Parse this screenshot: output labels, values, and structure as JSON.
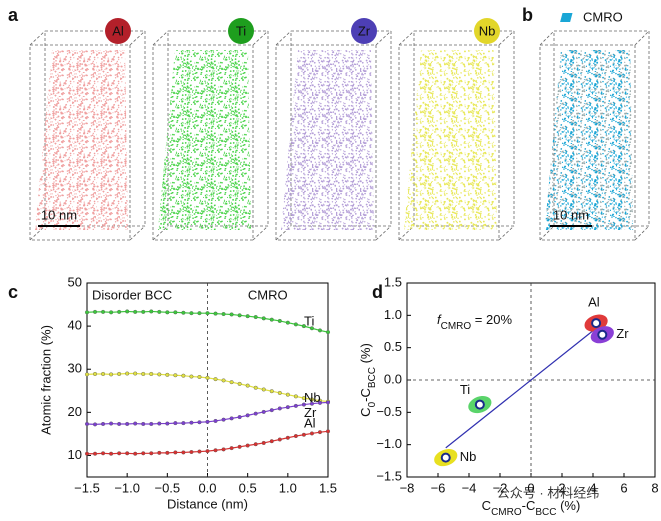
{
  "figure": {
    "panel_labels": [
      "a",
      "b",
      "c",
      "d"
    ],
    "maps": [
      {
        "element": "Al",
        "cloud": "#f0a0a0",
        "badge": "#b3202a",
        "text": "#ffffff"
      },
      {
        "element": "Ti",
        "cloud": "#4cd44c",
        "badge": "#1e9e1e",
        "text": "#ffffff"
      },
      {
        "element": "Zr",
        "cloud": "#b5a0d8",
        "badge": "#4d3fb5",
        "text": "#ffffff"
      },
      {
        "element": "Nb",
        "cloud": "#e8e85a",
        "badge": "#e2d62a",
        "text": "#000000"
      }
    ],
    "cro_cloud": "#1aa6d6",
    "cro_legend": "CMRO",
    "scale_bar": "10 nm",
    "watermark": "公众号 · 材料经纬"
  },
  "chart_data": [
    {
      "type": "line",
      "xlabel": "Distance (nm)",
      "ylabel": "Atomic fraction (%)",
      "annotations": [
        "Disorder BCC",
        "CMRO"
      ],
      "x": [
        -1.5,
        -1.4,
        -1.3,
        -1.2,
        -1.1,
        -1.0,
        -0.9,
        -0.8,
        -0.7,
        -0.6,
        -0.5,
        -0.4,
        -0.3,
        -0.2,
        -0.1,
        0,
        0.1,
        0.2,
        0.3,
        0.4,
        0.5,
        0.6,
        0.7,
        0.8,
        0.9,
        1.0,
        1.1,
        1.2,
        1.3,
        1.4,
        1.5
      ],
      "series": [
        {
          "name": "Ti",
          "color": "#3cc83c",
          "values": [
            43.2,
            43.3,
            43.3,
            43.2,
            43.3,
            43.4,
            43.3,
            43.3,
            43.4,
            43.3,
            43.2,
            43.2,
            43.1,
            43.0,
            43.0,
            43.0,
            42.9,
            42.8,
            42.7,
            42.5,
            42.3,
            42.1,
            41.8,
            41.5,
            41.2,
            40.8,
            40.4,
            40.0,
            39.5,
            39.0,
            38.6
          ]
        },
        {
          "name": "Nb",
          "color": "#e0e040",
          "values": [
            28.8,
            28.9,
            28.9,
            28.8,
            28.9,
            29.0,
            29.0,
            28.9,
            28.9,
            28.8,
            28.7,
            28.6,
            28.5,
            28.3,
            28.2,
            28.0,
            27.7,
            27.4,
            27.0,
            26.6,
            26.2,
            25.7,
            25.3,
            24.9,
            24.5,
            24.1,
            23.7,
            23.3,
            23.0,
            22.7,
            22.5
          ]
        },
        {
          "name": "Zr",
          "color": "#7b3fd0",
          "values": [
            17.3,
            17.2,
            17.3,
            17.4,
            17.3,
            17.3,
            17.4,
            17.3,
            17.3,
            17.4,
            17.4,
            17.5,
            17.5,
            17.6,
            17.7,
            17.8,
            18.0,
            18.3,
            18.6,
            18.9,
            19.3,
            19.7,
            20.1,
            20.5,
            20.9,
            21.2,
            21.5,
            21.8,
            22.0,
            22.2,
            22.3
          ]
        },
        {
          "name": "Al",
          "color": "#d93030",
          "values": [
            10.4,
            10.4,
            10.5,
            10.4,
            10.5,
            10.5,
            10.4,
            10.5,
            10.5,
            10.6,
            10.6,
            10.7,
            10.7,
            10.8,
            10.9,
            11.0,
            11.2,
            11.4,
            11.7,
            12.0,
            12.3,
            12.6,
            12.9,
            13.3,
            13.7,
            14.1,
            14.5,
            14.8,
            15.1,
            15.4,
            15.6
          ]
        }
      ],
      "xlim": [
        -1.5,
        1.5
      ],
      "xticks": [
        {
          "value": -1.5,
          "label": "−1.5"
        },
        {
          "value": -1.0,
          "label": "−1.0"
        },
        {
          "value": -0.5,
          "label": "−0.5"
        },
        {
          "value": 0,
          "label": "0.0"
        },
        0.5,
        {
          "value": 1.0,
          "label": "1.0"
        },
        1.5
      ],
      "ylim": [
        5,
        50
      ],
      "yticks": [
        10,
        20,
        30,
        40,
        50
      ]
    },
    {
      "type": "scatter",
      "xlabel": [
        "C",
        "CMRO",
        "-C",
        "BCC",
        " (%)"
      ],
      "ylabel": [
        "C",
        "0",
        "-C",
        "BCC",
        " (%)"
      ],
      "annotation": [
        "f",
        "CMRO",
        " = 20%"
      ],
      "series": [
        {
          "name": "Al",
          "color": "#e03a3a",
          "x": [
            4.2
          ],
          "values": [
            0.88
          ]
        },
        {
          "name": "Zr",
          "color": "#8a3fd6",
          "x": [
            4.6
          ],
          "values": [
            0.7
          ]
        },
        {
          "name": "Ti",
          "color": "#5ad46a",
          "x": [
            -3.3
          ],
          "values": [
            -0.38
          ]
        },
        {
          "name": "Nb",
          "color": "#e8e020",
          "x": [
            -5.5
          ],
          "values": [
            -1.2
          ]
        }
      ],
      "fit": {
        "color": "#3030b0",
        "x": [
          -5.5,
          4.3
        ],
        "values": [
          -1.05,
          0.82
        ]
      },
      "xlim": [
        -8,
        8
      ],
      "xticks": [
        {
          "value": -8,
          "label": "−8"
        },
        {
          "value": -6,
          "label": "−6"
        },
        {
          "value": -4,
          "label": "−4"
        },
        {
          "value": -2,
          "label": "−2"
        },
        0,
        2,
        4,
        6,
        8
      ],
      "ylim": [
        -1.5,
        1.5
      ],
      "yticks": [
        {
          "value": -1.5,
          "label": "−1.5"
        },
        {
          "value": -1.0,
          "label": "−1.0"
        },
        {
          "value": -0.5,
          "label": "−0.5"
        },
        {
          "value": 0,
          "label": "0.0"
        },
        0.5,
        {
          "value": 1.0,
          "label": "1.0"
        },
        1.5
      ]
    }
  ]
}
